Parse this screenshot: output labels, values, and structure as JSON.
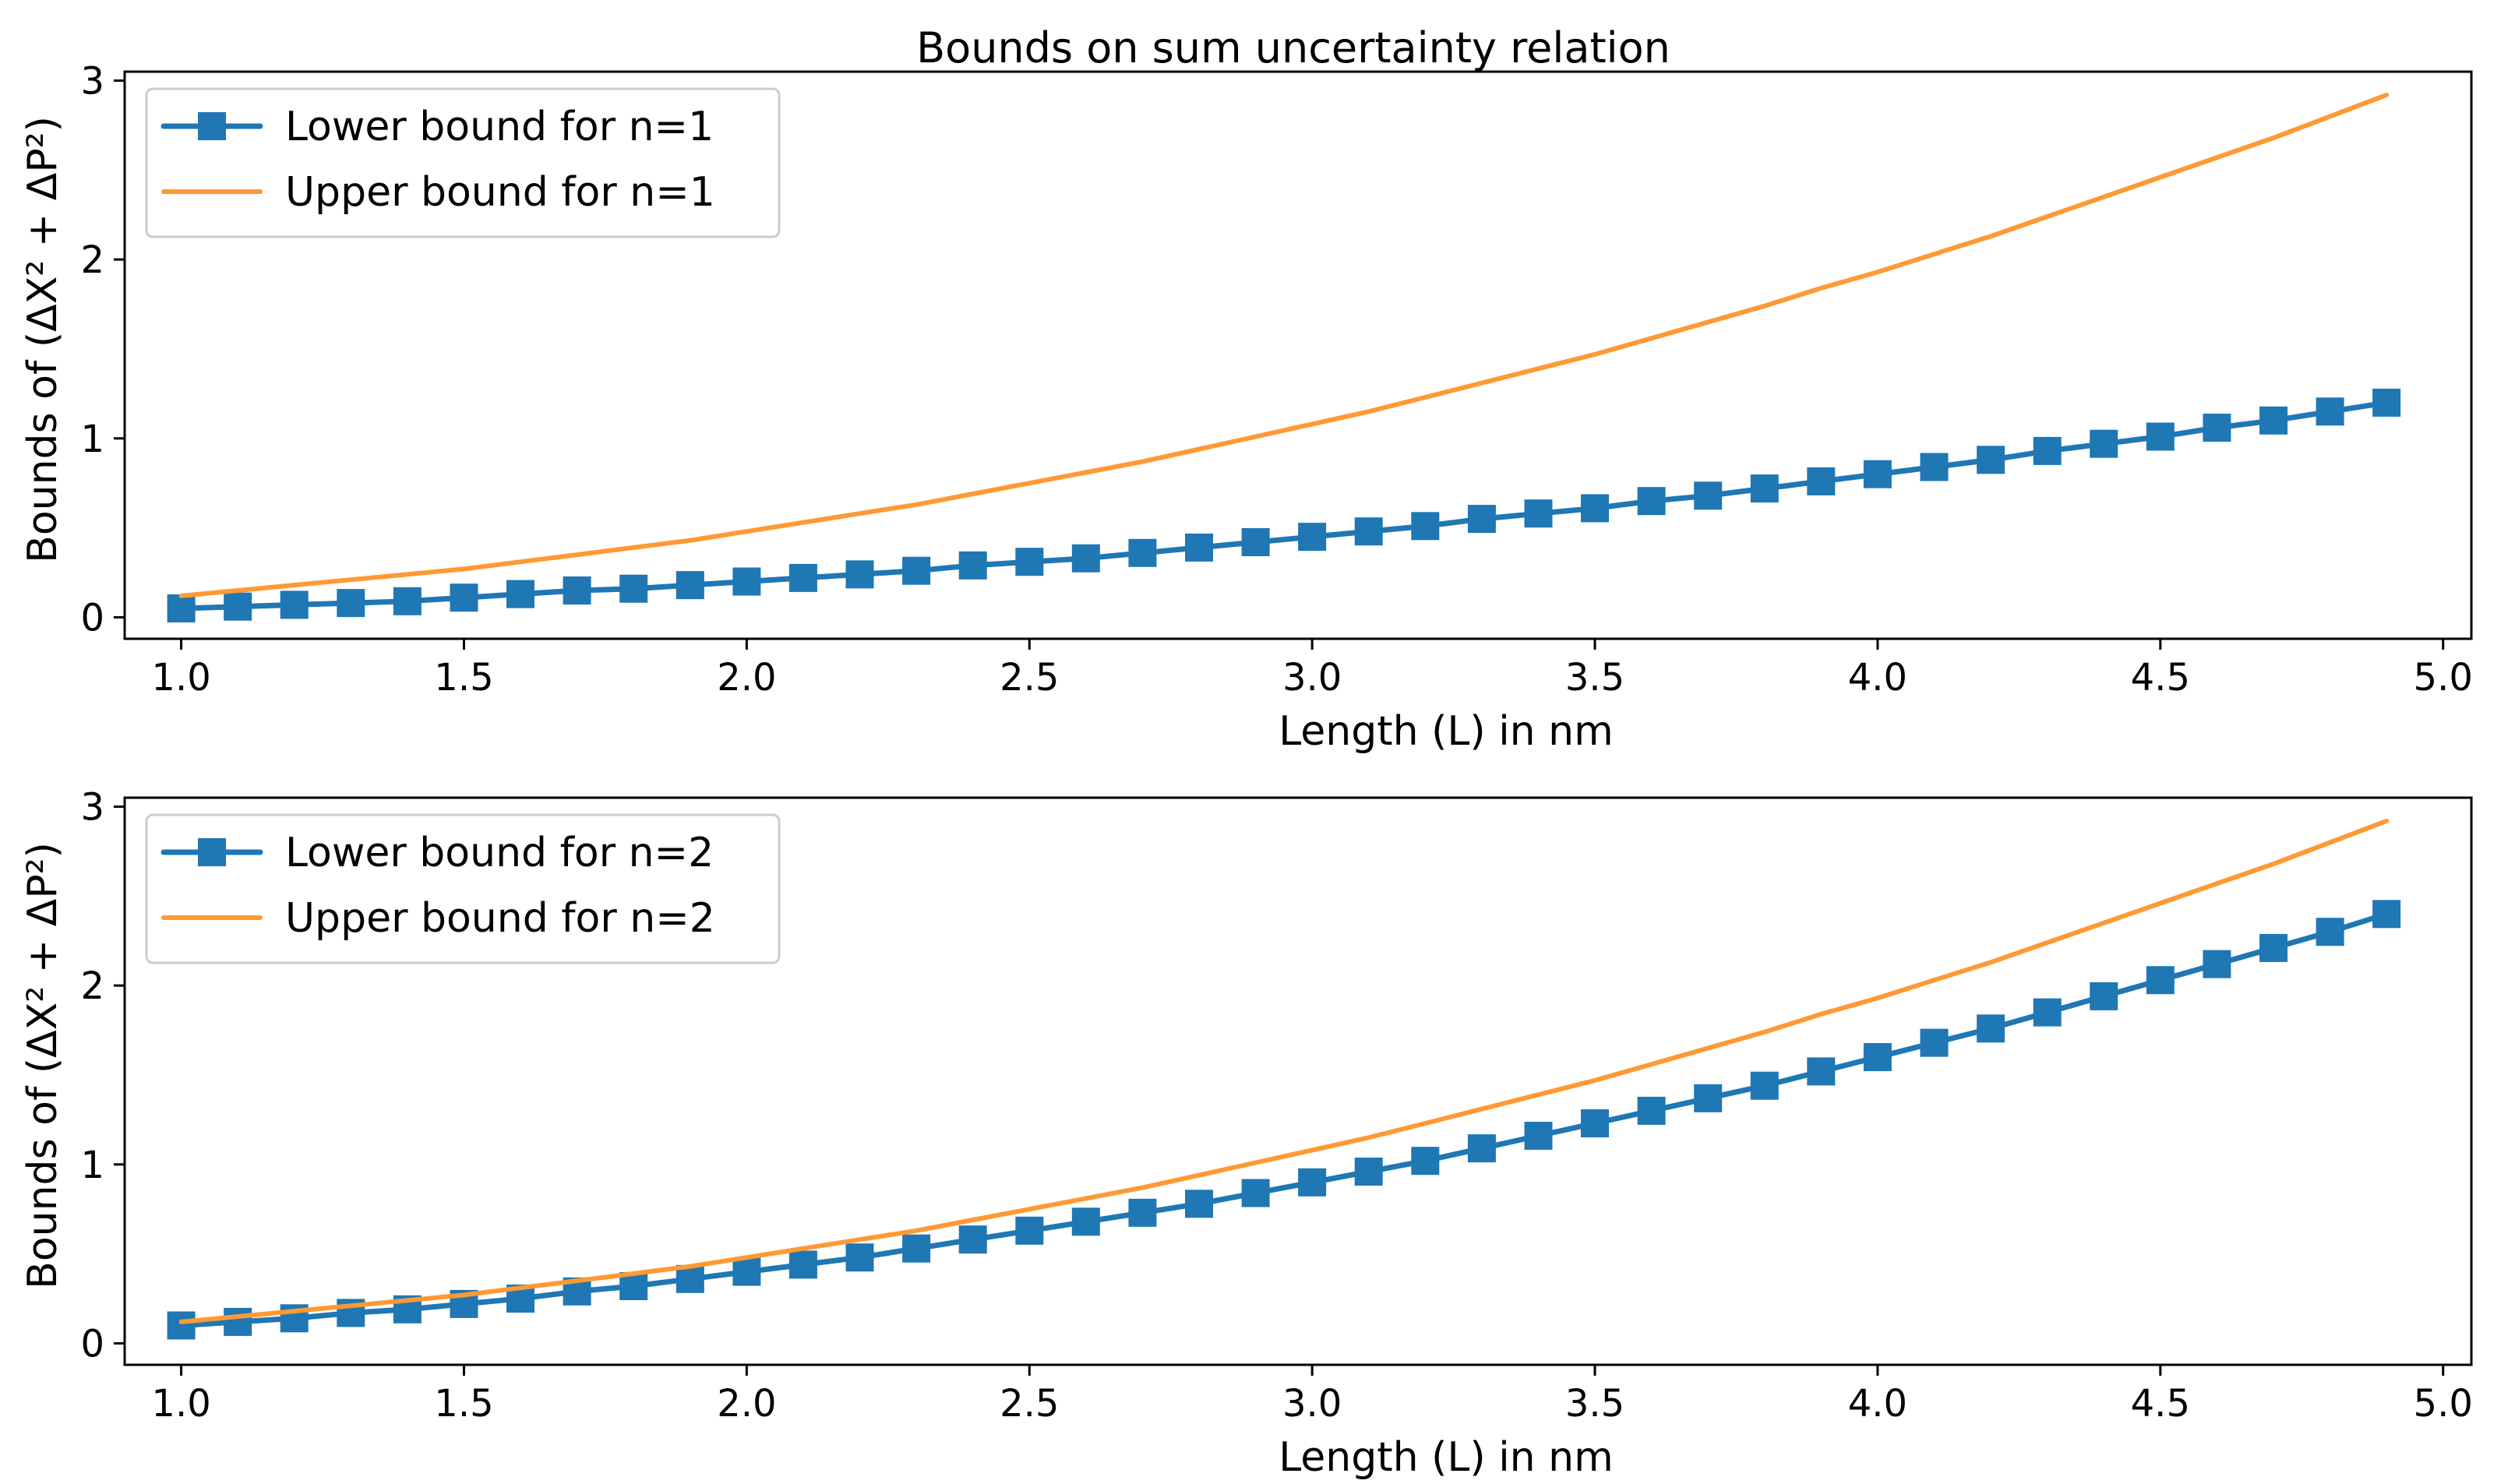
{
  "figure": {
    "title": "Bounds on sum uncertainty relation",
    "lower_color": "#1f77b4",
    "upper_color": "#ff9933"
  },
  "chart_data": [
    {
      "type": "line",
      "xlabel": "Length (L) in nm",
      "ylabel": "Bounds of (ΔX² + ΔP²)",
      "xlim": [
        0.9,
        5.05
      ],
      "ylim": [
        -0.12,
        3.05
      ],
      "xticks": [
        "1.0",
        "1.5",
        "2.0",
        "2.5",
        "3.0",
        "3.5",
        "4.0",
        "4.5",
        "5.0"
      ],
      "yticks": [
        "0",
        "1",
        "2",
        "3"
      ],
      "legend_position": "top-left",
      "grid": false,
      "series": [
        {
          "name": "Lower bound for n=1",
          "marker": "square",
          "x": [
            1.0,
            1.1,
            1.2,
            1.3,
            1.4,
            1.5,
            1.6,
            1.7,
            1.8,
            1.9,
            2.0,
            2.1,
            2.2,
            2.3,
            2.4,
            2.5,
            2.6,
            2.7,
            2.8,
            2.9,
            3.0,
            3.1,
            3.2,
            3.3,
            3.4,
            3.5,
            3.6,
            3.7,
            3.8,
            3.9,
            4.0,
            4.1,
            4.2,
            4.3,
            4.4,
            4.5,
            4.6,
            4.7,
            4.8,
            4.9
          ],
          "y": [
            0.05,
            0.06,
            0.07,
            0.08,
            0.09,
            0.11,
            0.13,
            0.15,
            0.16,
            0.18,
            0.2,
            0.22,
            0.24,
            0.26,
            0.29,
            0.31,
            0.33,
            0.36,
            0.39,
            0.42,
            0.45,
            0.48,
            0.51,
            0.55,
            0.58,
            0.61,
            0.65,
            0.68,
            0.72,
            0.76,
            0.8,
            0.84,
            0.88,
            0.93,
            0.97,
            1.01,
            1.06,
            1.1,
            1.15,
            1.2
          ]
        },
        {
          "name": "Upper bound for n=1",
          "marker": "none",
          "x": [
            1.0,
            1.1,
            1.2,
            1.3,
            1.4,
            1.5,
            1.6,
            1.7,
            1.8,
            1.9,
            2.0,
            2.1,
            2.2,
            2.3,
            2.4,
            2.5,
            2.6,
            2.7,
            2.8,
            2.9,
            3.0,
            3.1,
            3.2,
            3.3,
            3.4,
            3.5,
            3.6,
            3.7,
            3.8,
            3.9,
            4.0,
            4.1,
            4.2,
            4.3,
            4.4,
            4.5,
            4.6,
            4.7,
            4.8,
            4.9
          ],
          "y": [
            0.12,
            0.15,
            0.18,
            0.21,
            0.24,
            0.27,
            0.31,
            0.35,
            0.39,
            0.43,
            0.48,
            0.53,
            0.58,
            0.63,
            0.69,
            0.75,
            0.81,
            0.87,
            0.94,
            1.01,
            1.08,
            1.15,
            1.23,
            1.31,
            1.39,
            1.47,
            1.56,
            1.65,
            1.74,
            1.84,
            1.93,
            2.03,
            2.13,
            2.24,
            2.35,
            2.46,
            2.57,
            2.68,
            2.8,
            2.92
          ]
        }
      ]
    },
    {
      "type": "line",
      "xlabel": "Length (L) in nm",
      "ylabel": "Bounds of (ΔX² + ΔP²)",
      "xlim": [
        0.9,
        5.05
      ],
      "ylim": [
        -0.12,
        3.05
      ],
      "xticks": [
        "1.0",
        "1.5",
        "2.0",
        "2.5",
        "3.0",
        "3.5",
        "4.0",
        "4.5",
        "5.0"
      ],
      "yticks": [
        "0",
        "1",
        "2",
        "3"
      ],
      "legend_position": "top-left",
      "grid": false,
      "series": [
        {
          "name": "Lower bound for n=2",
          "marker": "square",
          "x": [
            1.0,
            1.1,
            1.2,
            1.3,
            1.4,
            1.5,
            1.6,
            1.7,
            1.8,
            1.9,
            2.0,
            2.1,
            2.2,
            2.3,
            2.4,
            2.5,
            2.6,
            2.7,
            2.8,
            2.9,
            3.0,
            3.1,
            3.2,
            3.3,
            3.4,
            3.5,
            3.6,
            3.7,
            3.8,
            3.9,
            4.0,
            4.1,
            4.2,
            4.3,
            4.4,
            4.5,
            4.6,
            4.7,
            4.8,
            4.9
          ],
          "y": [
            0.1,
            0.12,
            0.14,
            0.17,
            0.19,
            0.22,
            0.25,
            0.29,
            0.32,
            0.36,
            0.4,
            0.44,
            0.48,
            0.53,
            0.58,
            0.63,
            0.68,
            0.73,
            0.78,
            0.84,
            0.9,
            0.96,
            1.02,
            1.09,
            1.16,
            1.23,
            1.3,
            1.37,
            1.44,
            1.52,
            1.6,
            1.68,
            1.76,
            1.85,
            1.94,
            2.03,
            2.12,
            2.21,
            2.3,
            2.4
          ]
        },
        {
          "name": "Upper bound for n=2",
          "marker": "none",
          "x": [
            1.0,
            1.1,
            1.2,
            1.3,
            1.4,
            1.5,
            1.6,
            1.7,
            1.8,
            1.9,
            2.0,
            2.1,
            2.2,
            2.3,
            2.4,
            2.5,
            2.6,
            2.7,
            2.8,
            2.9,
            3.0,
            3.1,
            3.2,
            3.3,
            3.4,
            3.5,
            3.6,
            3.7,
            3.8,
            3.9,
            4.0,
            4.1,
            4.2,
            4.3,
            4.4,
            4.5,
            4.6,
            4.7,
            4.8,
            4.9
          ],
          "y": [
            0.12,
            0.15,
            0.18,
            0.21,
            0.24,
            0.27,
            0.31,
            0.35,
            0.39,
            0.43,
            0.48,
            0.53,
            0.58,
            0.63,
            0.69,
            0.75,
            0.81,
            0.87,
            0.94,
            1.01,
            1.08,
            1.15,
            1.23,
            1.31,
            1.39,
            1.47,
            1.56,
            1.65,
            1.74,
            1.84,
            1.93,
            2.03,
            2.13,
            2.24,
            2.35,
            2.46,
            2.57,
            2.68,
            2.8,
            2.92
          ]
        }
      ]
    }
  ]
}
